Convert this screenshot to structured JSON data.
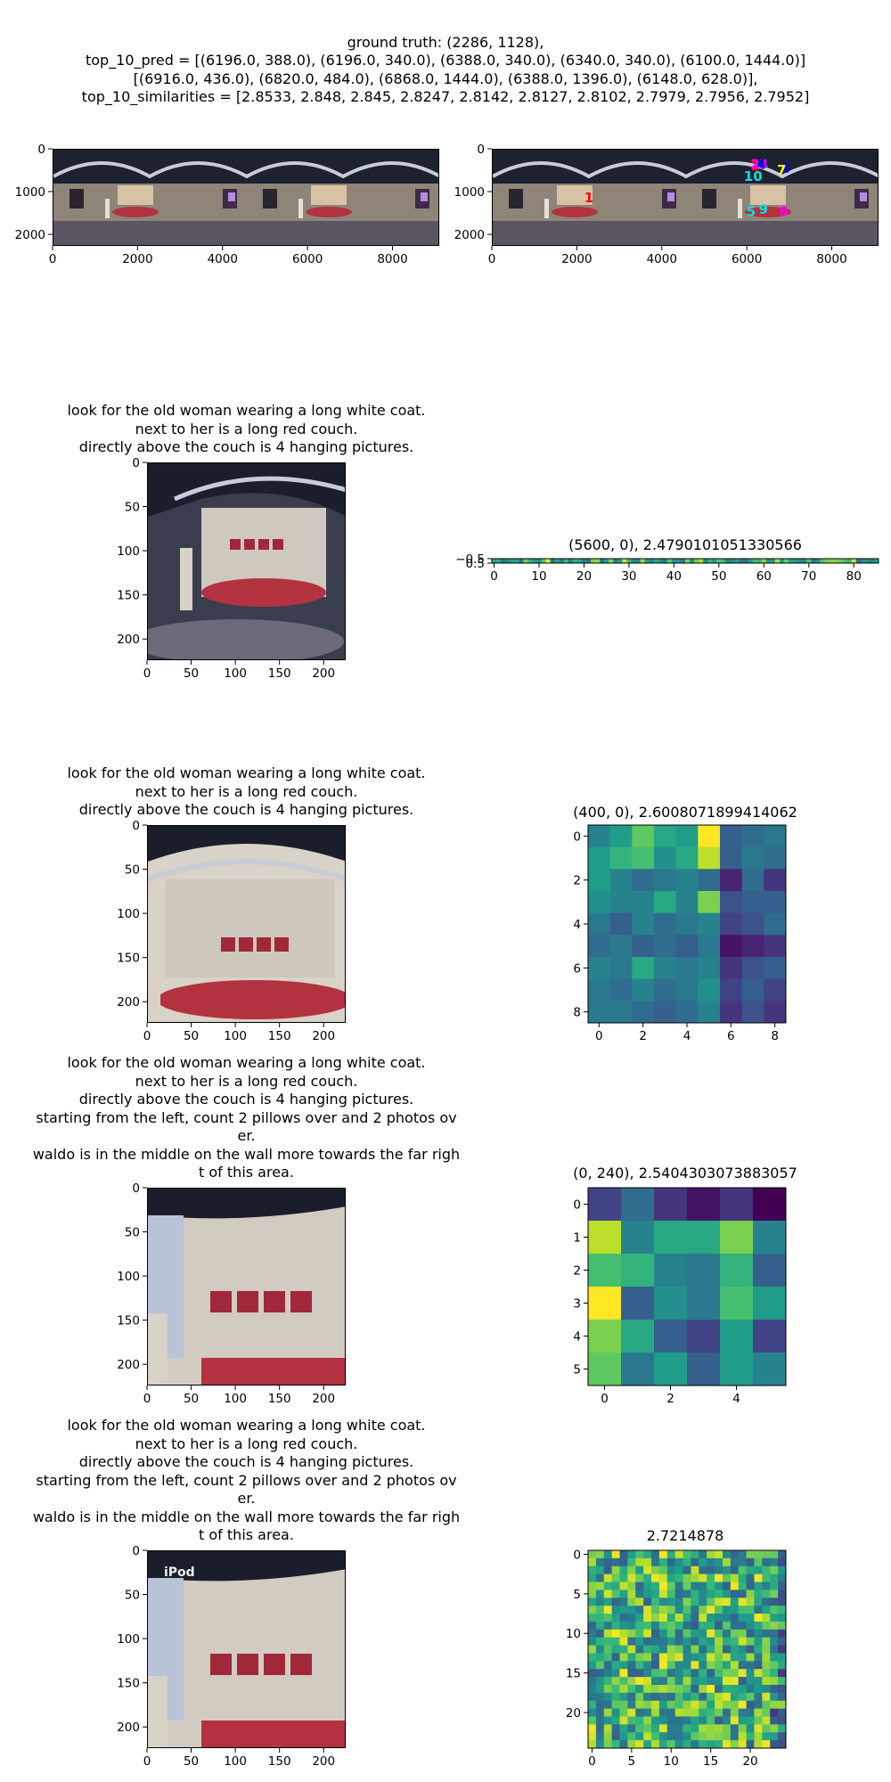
{
  "header": {
    "lines": [
      "ground truth: (2286, 1128),",
      "top_10_pred = [(6196.0, 388.0), (6196.0, 340.0), (6388.0, 340.0), (6340.0, 340.0), (6100.0, 1444.0)]",
      "[(6916.0, 436.0), (6820.0, 484.0), (6868.0, 1444.0), (6388.0, 1396.0), (6148.0, 628.0)],",
      "top_10_similarities = [2.8533, 2.848, 2.845, 2.8247, 2.8142, 2.8127, 2.8102, 2.7979, 2.7956, 2.7952]"
    ]
  },
  "colors": {
    "pano_sky": "#1d2230",
    "pano_wall": "#8f8478",
    "pano_floor": "#5a5560",
    "couch_red": "#b3323f",
    "marker_red": "#ff0000",
    "marker_magenta": "#ff00ff",
    "marker_cyan": "#00e5e5",
    "marker_blue": "#0000ff",
    "marker_yellow": "#ffff00",
    "viridis_low": "#440154",
    "viridis_mid": "#21918c",
    "viridis_high": "#fde725"
  },
  "queries": {
    "short": [
      "look for the old woman wearing a long white coat.",
      "next to her is a long red couch.",
      "directly above the couch is 4 hanging pictures."
    ],
    "long": [
      "look for the old woman wearing a long white coat.",
      "next to her is a long red couch.",
      "directly above the couch is 4 hanging pictures.",
      "starting from the left, count 2 pillows over and 2 photos ov",
      "er.",
      "waldo is in the middle on the wall more towards the far righ",
      "t of this area."
    ]
  },
  "crop_overlay_text": "iPod",
  "chart_data": [
    {
      "id": "pano_left",
      "type": "image",
      "xticks": [
        0,
        2000,
        4000,
        6000,
        8000
      ],
      "yticks": [
        0,
        1000,
        2000
      ],
      "xlim": [
        0,
        9100
      ],
      "ylim": [
        2270,
        0
      ]
    },
    {
      "id": "pano_right",
      "type": "scatter",
      "xticks": [
        0,
        2000,
        4000,
        6000,
        8000
      ],
      "yticks": [
        0,
        1000,
        2000
      ],
      "xlim": [
        0,
        9100
      ],
      "ylim": [
        2270,
        0
      ],
      "ground_truth": {
        "x": 2286,
        "y": 1128,
        "label": "1"
      },
      "predictions": [
        {
          "label": "1",
          "x": 6196,
          "y": 388
        },
        {
          "label": "2",
          "x": 6196,
          "y": 340
        },
        {
          "label": "3",
          "x": 6388,
          "y": 340
        },
        {
          "label": "4",
          "x": 6340,
          "y": 340
        },
        {
          "label": "5",
          "x": 6100,
          "y": 1444
        },
        {
          "label": "6",
          "x": 6916,
          "y": 436
        },
        {
          "label": "7",
          "x": 6820,
          "y": 484
        },
        {
          "label": "8",
          "x": 6868,
          "y": 1444
        },
        {
          "label": "9",
          "x": 6388,
          "y": 1396
        },
        {
          "label": "10",
          "x": 6148,
          "y": 628
        }
      ]
    },
    {
      "id": "crop1",
      "type": "image",
      "xticks": [
        0,
        50,
        100,
        150,
        200
      ],
      "yticks": [
        0,
        50,
        100,
        150,
        200
      ],
      "xlim": [
        0,
        224
      ],
      "ylim": [
        224,
        0
      ]
    },
    {
      "id": "heat_strip",
      "type": "heatmap",
      "title": "(5600, 0), 2.4790101051330566",
      "xticks": [
        0,
        10,
        20,
        30,
        40,
        50,
        60,
        70,
        80
      ],
      "yticks": [
        "−0.5",
        "0.5"
      ],
      "ncols": 86,
      "nrows": 1
    },
    {
      "id": "crop2",
      "type": "image",
      "xticks": [
        0,
        50,
        100,
        150,
        200
      ],
      "yticks": [
        0,
        50,
        100,
        150,
        200
      ],
      "xlim": [
        0,
        224
      ],
      "ylim": [
        224,
        0
      ]
    },
    {
      "id": "heat9",
      "type": "heatmap",
      "title": "(400, 0), 2.6008071899414062",
      "xticks": [
        0,
        2,
        4,
        6,
        8
      ],
      "yticks": [
        0,
        2,
        4,
        6,
        8
      ],
      "values": [
        [
          0.45,
          0.55,
          0.75,
          0.6,
          0.55,
          1.0,
          0.3,
          0.35,
          0.4
        ],
        [
          0.55,
          0.65,
          0.7,
          0.5,
          0.6,
          0.9,
          0.3,
          0.4,
          0.35
        ],
        [
          0.55,
          0.45,
          0.35,
          0.4,
          0.45,
          0.35,
          0.1,
          0.35,
          0.15
        ],
        [
          0.5,
          0.45,
          0.45,
          0.6,
          0.45,
          0.8,
          0.25,
          0.3,
          0.3
        ],
        [
          0.4,
          0.3,
          0.45,
          0.35,
          0.4,
          0.45,
          0.2,
          0.25,
          0.35
        ],
        [
          0.35,
          0.4,
          0.3,
          0.35,
          0.3,
          0.4,
          0.05,
          0.1,
          0.15
        ],
        [
          0.45,
          0.4,
          0.6,
          0.45,
          0.4,
          0.45,
          0.15,
          0.25,
          0.3
        ],
        [
          0.4,
          0.35,
          0.45,
          0.35,
          0.4,
          0.5,
          0.2,
          0.3,
          0.2
        ],
        [
          0.4,
          0.4,
          0.35,
          0.3,
          0.35,
          0.45,
          0.15,
          0.25,
          0.15
        ]
      ]
    },
    {
      "id": "crop3",
      "type": "image",
      "xticks": [
        0,
        50,
        100,
        150,
        200
      ],
      "yticks": [
        0,
        50,
        100,
        150,
        200
      ],
      "xlim": [
        0,
        224
      ],
      "ylim": [
        224,
        0
      ]
    },
    {
      "id": "heat6",
      "type": "heatmap",
      "title": "(0, 240), 2.5404303073883057",
      "xticks": [
        0,
        2,
        4
      ],
      "yticks": [
        0,
        1,
        2,
        3,
        4,
        5
      ],
      "values": [
        [
          0.2,
          0.35,
          0.15,
          0.05,
          0.15,
          0.0
        ],
        [
          0.9,
          0.45,
          0.6,
          0.6,
          0.8,
          0.45
        ],
        [
          0.7,
          0.65,
          0.45,
          0.4,
          0.65,
          0.3
        ],
        [
          1.0,
          0.3,
          0.5,
          0.4,
          0.7,
          0.55
        ],
        [
          0.8,
          0.6,
          0.3,
          0.2,
          0.55,
          0.2
        ],
        [
          0.75,
          0.4,
          0.55,
          0.3,
          0.55,
          0.45
        ]
      ]
    },
    {
      "id": "crop4",
      "type": "image",
      "xticks": [
        0,
        50,
        100,
        150,
        200
      ],
      "yticks": [
        0,
        50,
        100,
        150,
        200
      ],
      "xlim": [
        0,
        224
      ],
      "ylim": [
        224,
        0
      ]
    },
    {
      "id": "heat25",
      "type": "heatmap",
      "title": "2.7214878",
      "xticks": [
        0,
        5,
        10,
        15,
        20
      ],
      "yticks": [
        0,
        5,
        10,
        15,
        20
      ],
      "ncols": 25,
      "nrows": 25
    }
  ]
}
